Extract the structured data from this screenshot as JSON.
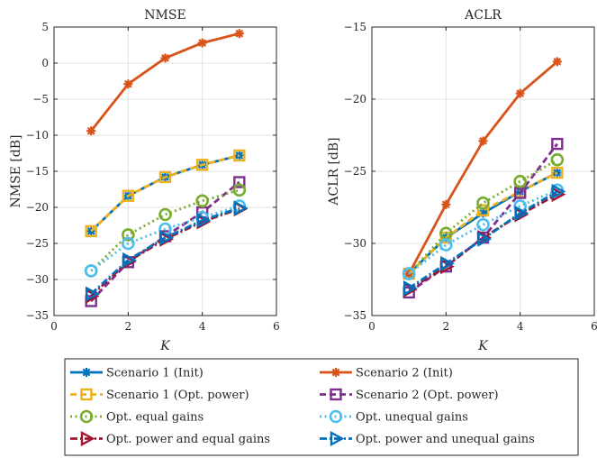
{
  "chart_data": [
    {
      "type": "line",
      "title": "NMSE",
      "xlabel": "K",
      "ylabel": "NMSE [dB]",
      "xlim": [
        0,
        6
      ],
      "ylim": [
        -35,
        5
      ],
      "xticks": [
        0,
        2,
        4,
        6
      ],
      "yticks": [
        5,
        0,
        -5,
        -10,
        -15,
        -20,
        -25,
        -30,
        -35
      ],
      "grid": true,
      "x": [
        1,
        2,
        3,
        4,
        5
      ],
      "series": [
        {
          "name": "Scenario 1 (Init)",
          "values": [
            -23.3,
            -18.4,
            -15.8,
            -14.1,
            -12.8
          ]
        },
        {
          "name": "Scenario 2 (Init)",
          "values": [
            -9.4,
            -2.9,
            0.7,
            2.8,
            4.1
          ]
        },
        {
          "name": "Scenario 1 (Opt. power)",
          "values": [
            -23.3,
            -18.4,
            -15.8,
            -14.1,
            -12.8
          ]
        },
        {
          "name": "Scenario 2 (Opt. power)",
          "values": [
            -33.0,
            -27.6,
            -24.0,
            -20.7,
            -16.5
          ]
        },
        {
          "name": "Opt. equal gains",
          "values": [
            -28.8,
            -23.8,
            -21.0,
            -19.1,
            -17.6
          ]
        },
        {
          "name": "Opt. unequal gains",
          "values": [
            -28.8,
            -25.0,
            -23.0,
            -21.4,
            -19.8
          ]
        },
        {
          "name": "Opt. power and equal gains",
          "values": [
            -32.3,
            -27.5,
            -24.4,
            -22.0,
            -20.2
          ]
        },
        {
          "name": "Opt. power and unequal gains",
          "values": [
            -32.0,
            -27.3,
            -24.2,
            -21.8,
            -20.1
          ]
        }
      ]
    },
    {
      "type": "line",
      "title": "ACLR",
      "xlabel": "K",
      "ylabel": "ACLR [dB]",
      "xlim": [
        0,
        6
      ],
      "ylim": [
        -35,
        -15
      ],
      "xticks": [
        0,
        2,
        4,
        6
      ],
      "yticks": [
        -15,
        -20,
        -25,
        -30,
        -35
      ],
      "grid": true,
      "x": [
        1,
        2,
        3,
        4,
        5
      ],
      "series": [
        {
          "name": "Scenario 1 (Init)",
          "values": [
            -32.1,
            -29.6,
            -27.9,
            -26.4,
            -25.1
          ]
        },
        {
          "name": "Scenario 2 (Init)",
          "values": [
            -32.1,
            -27.3,
            -22.9,
            -19.6,
            -17.4
          ]
        },
        {
          "name": "Scenario 1 (Opt. power)",
          "values": [
            -32.1,
            -29.6,
            -27.7,
            -26.4,
            -25.1
          ]
        },
        {
          "name": "Scenario 2 (Opt. power)",
          "values": [
            -33.4,
            -31.6,
            -29.6,
            -26.5,
            -23.1
          ]
        },
        {
          "name": "Opt. equal gains",
          "values": [
            -32.1,
            -29.3,
            -27.2,
            -25.7,
            -24.2
          ]
        },
        {
          "name": "Opt. unequal gains",
          "values": [
            -32.1,
            -30.1,
            -28.7,
            -27.4,
            -26.3
          ]
        },
        {
          "name": "Opt. power and equal gains",
          "values": [
            -33.2,
            -31.6,
            -29.6,
            -28.0,
            -26.6
          ]
        },
        {
          "name": "Opt. power and unequal gains",
          "values": [
            -33.1,
            -31.4,
            -29.7,
            -27.9,
            -26.4
          ]
        }
      ]
    }
  ],
  "styles": [
    {
      "color": "#0072BD",
      "dash": "solid",
      "marker": "asterisk"
    },
    {
      "color": "#D95319",
      "dash": "solid",
      "marker": "asterisk"
    },
    {
      "color": "#EDB120",
      "dash": "dashed",
      "marker": "square"
    },
    {
      "color": "#7E2F8E",
      "dash": "dashed",
      "marker": "square"
    },
    {
      "color": "#77AC30",
      "dash": "dotted",
      "marker": "circle"
    },
    {
      "color": "#4DBEEE",
      "dash": "dotted",
      "marker": "circle"
    },
    {
      "color": "#A2142F",
      "dash": "dashdot",
      "marker": "triangle-right"
    },
    {
      "color": "#0072BD",
      "dash": "dashdot",
      "marker": "triangle-right"
    }
  ],
  "legend": {
    "placement": "bottom",
    "entries": [
      "Scenario 1 (Init)",
      "Scenario 2 (Init)",
      "Scenario 1 (Opt. power)",
      "Scenario 2 (Opt. power)",
      "Opt. equal gains",
      "Opt. unequal gains",
      "Opt. power and equal gains",
      "Opt. power and unequal gains"
    ]
  }
}
